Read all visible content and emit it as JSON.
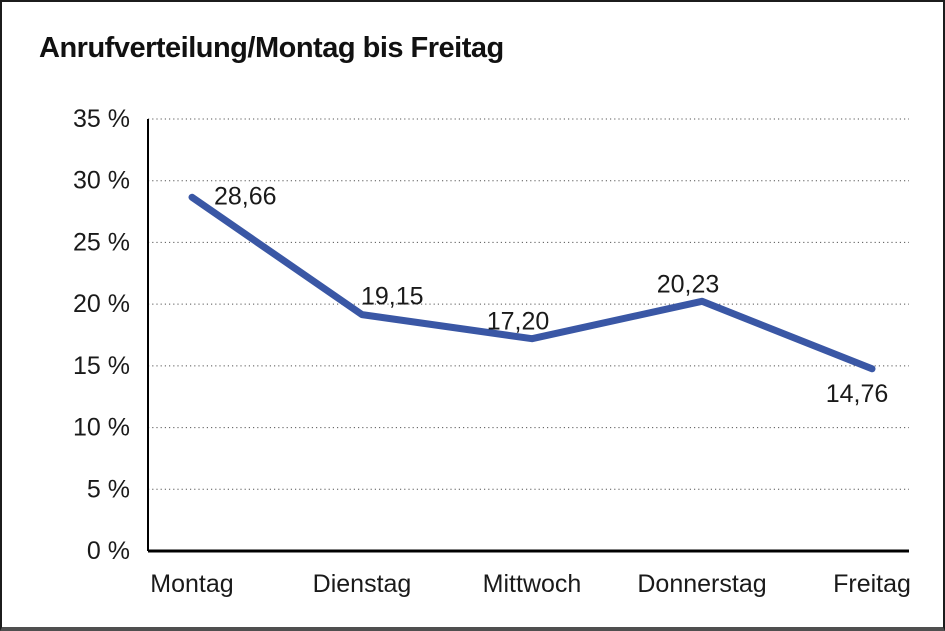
{
  "chart": {
    "title": "Anrufverteilung/Montag bis Freitag"
  },
  "chart_data": {
    "type": "line",
    "title": "Anrufverteilung/Montag bis Freitag",
    "categories": [
      "Montag",
      "Dienstag",
      "Mittwoch",
      "Donnerstag",
      "Freitag"
    ],
    "series": [
      {
        "name": "Anrufverteilung",
        "values": [
          28.66,
          19.15,
          17.2,
          20.23,
          14.76
        ],
        "value_labels": [
          "28,66",
          "19,15",
          "17,20",
          "20,23",
          "14,76"
        ]
      }
    ],
    "xlabel": "",
    "ylabel": "",
    "ylim": [
      0,
      35
    ],
    "yticks": [
      {
        "value": 0,
        "label": "0 %"
      },
      {
        "value": 5,
        "label": "5 %"
      },
      {
        "value": 10,
        "label": "10 %"
      },
      {
        "value": 15,
        "label": "15 %"
      },
      {
        "value": 20,
        "label": "20 %"
      },
      {
        "value": 25,
        "label": "25 %"
      },
      {
        "value": 30,
        "label": "30 %"
      },
      {
        "value": 35,
        "label": "35 %"
      }
    ],
    "grid": "horizontal-dotted",
    "legend": "none",
    "colors": {
      "line": "#3A57A5",
      "text": "#1a1a1a",
      "gridline": "#555555",
      "axis": "#000000"
    }
  }
}
